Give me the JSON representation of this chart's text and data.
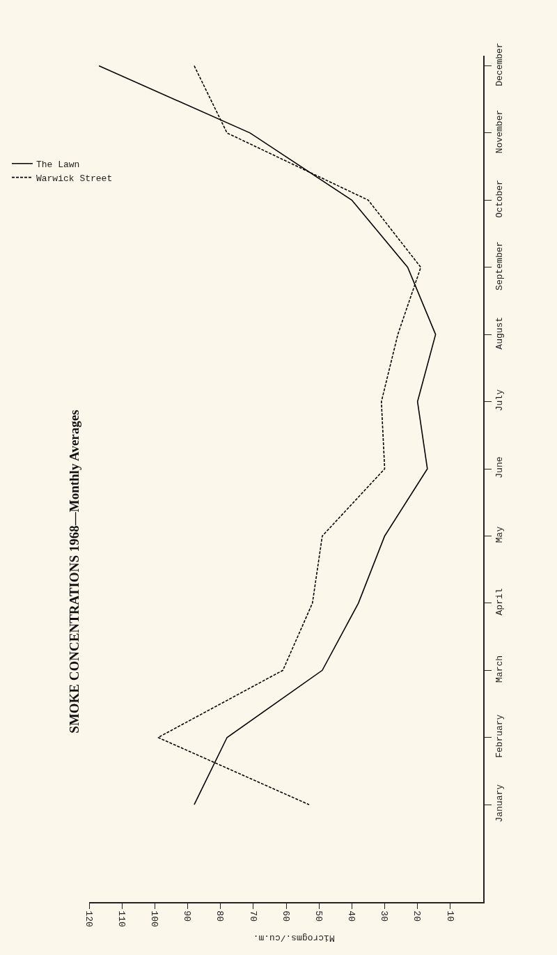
{
  "chart_data": {
    "type": "line",
    "title": "SMOKE CONCENTRATIONS 1968—Monthly Averages",
    "xlabel": "Microgms./cu.m.",
    "orientation": "horizontal",
    "categories": [
      "December",
      "November",
      "October",
      "September",
      "August",
      "July",
      "June",
      "May",
      "April",
      "March",
      "February",
      "January"
    ],
    "series": [
      {
        "name": "The Lawn",
        "color": "#000000",
        "line_style": "solid",
        "values": [
          117,
          71,
          40,
          23,
          14.5,
          20,
          17,
          30,
          38,
          49,
          78,
          88
        ]
      },
      {
        "name": "Warwick Street",
        "color": "#000000",
        "line_style": "dashed",
        "values": [
          88,
          78,
          35,
          19,
          26,
          31,
          30,
          49,
          52,
          61,
          99,
          53
        ]
      }
    ],
    "xlim": [
      120,
      0
    ],
    "xticks": [
      10,
      20,
      30,
      40,
      50,
      60,
      70,
      80,
      90,
      100,
      110,
      120
    ],
    "grid": false,
    "legend": "top left",
    "marker": "none"
  }
}
